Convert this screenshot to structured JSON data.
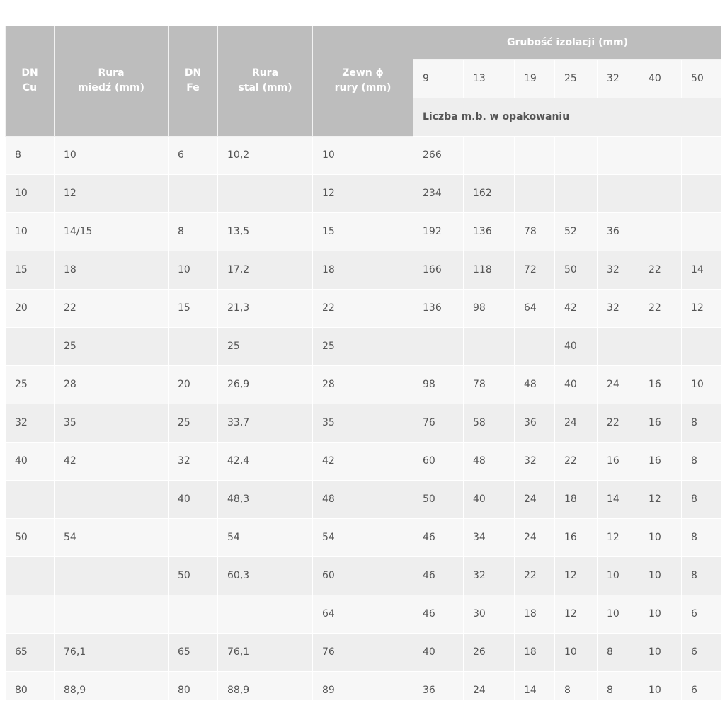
{
  "headers": {
    "dn_cu": [
      "DN",
      "Cu"
    ],
    "rura_miedz": [
      "Rura",
      "miedź (mm)"
    ],
    "dn_fe": [
      "DN",
      "Fe"
    ],
    "rura_stal": [
      "Rura",
      "stal (mm)"
    ],
    "zewn": [
      "Zewn ϕ",
      "rury (mm)"
    ],
    "grubosc": "Grubość izolacji (mm)",
    "thickness": [
      "9",
      "13",
      "19",
      "25",
      "32",
      "40",
      "50"
    ],
    "liczba": "Liczba m.b. w opakowaniu"
  },
  "rows": [
    [
      "8",
      "10",
      "6",
      "10,2",
      "10",
      "266",
      "",
      "",
      "",
      "",
      "",
      ""
    ],
    [
      "10",
      "12",
      "",
      "",
      "12",
      "234",
      "162",
      "",
      "",
      "",
      "",
      ""
    ],
    [
      "10",
      "14/15",
      "8",
      "13,5",
      "15",
      "192",
      "136",
      "78",
      "52",
      "36",
      "",
      ""
    ],
    [
      "15",
      "18",
      "10",
      "17,2",
      "18",
      "166",
      "118",
      "72",
      "50",
      "32",
      "22",
      "14"
    ],
    [
      "20",
      "22",
      "15",
      "21,3",
      "22",
      "136",
      "98",
      "64",
      "42",
      "32",
      "22",
      "12"
    ],
    [
      "",
      "25",
      "",
      "25",
      "25",
      "",
      "",
      "",
      "40",
      "",
      "",
      ""
    ],
    [
      "25",
      "28",
      "20",
      "26,9",
      "28",
      "98",
      "78",
      "48",
      "40",
      "24",
      "16",
      "10"
    ],
    [
      "32",
      "35",
      "25",
      "33,7",
      "35",
      "76",
      "58",
      "36",
      "24",
      "22",
      "16",
      "8"
    ],
    [
      "40",
      "42",
      "32",
      "42,4",
      "42",
      "60",
      "48",
      "32",
      "22",
      "16",
      "16",
      "8"
    ],
    [
      "",
      "",
      "40",
      "48,3",
      "48",
      "50",
      "40",
      "24",
      "18",
      "14",
      "12",
      "8"
    ],
    [
      "50",
      "54",
      "",
      "54",
      "54",
      "46",
      "34",
      "24",
      "16",
      "12",
      "10",
      "8"
    ],
    [
      "",
      "",
      "50",
      "60,3",
      "60",
      "46",
      "32",
      "22",
      "12",
      "10",
      "10",
      "8"
    ],
    [
      "",
      "",
      "",
      "",
      "64",
      "46",
      "30",
      "18",
      "12",
      "10",
      "10",
      "6"
    ],
    [
      "65",
      "76,1",
      "65",
      "76,1",
      "76",
      "40",
      "26",
      "18",
      "10",
      "8",
      "10",
      "6"
    ],
    [
      "80",
      "88,9",
      "80",
      "88,9",
      "89",
      "36",
      "24",
      "14",
      "8",
      "8",
      "10",
      "6"
    ]
  ]
}
